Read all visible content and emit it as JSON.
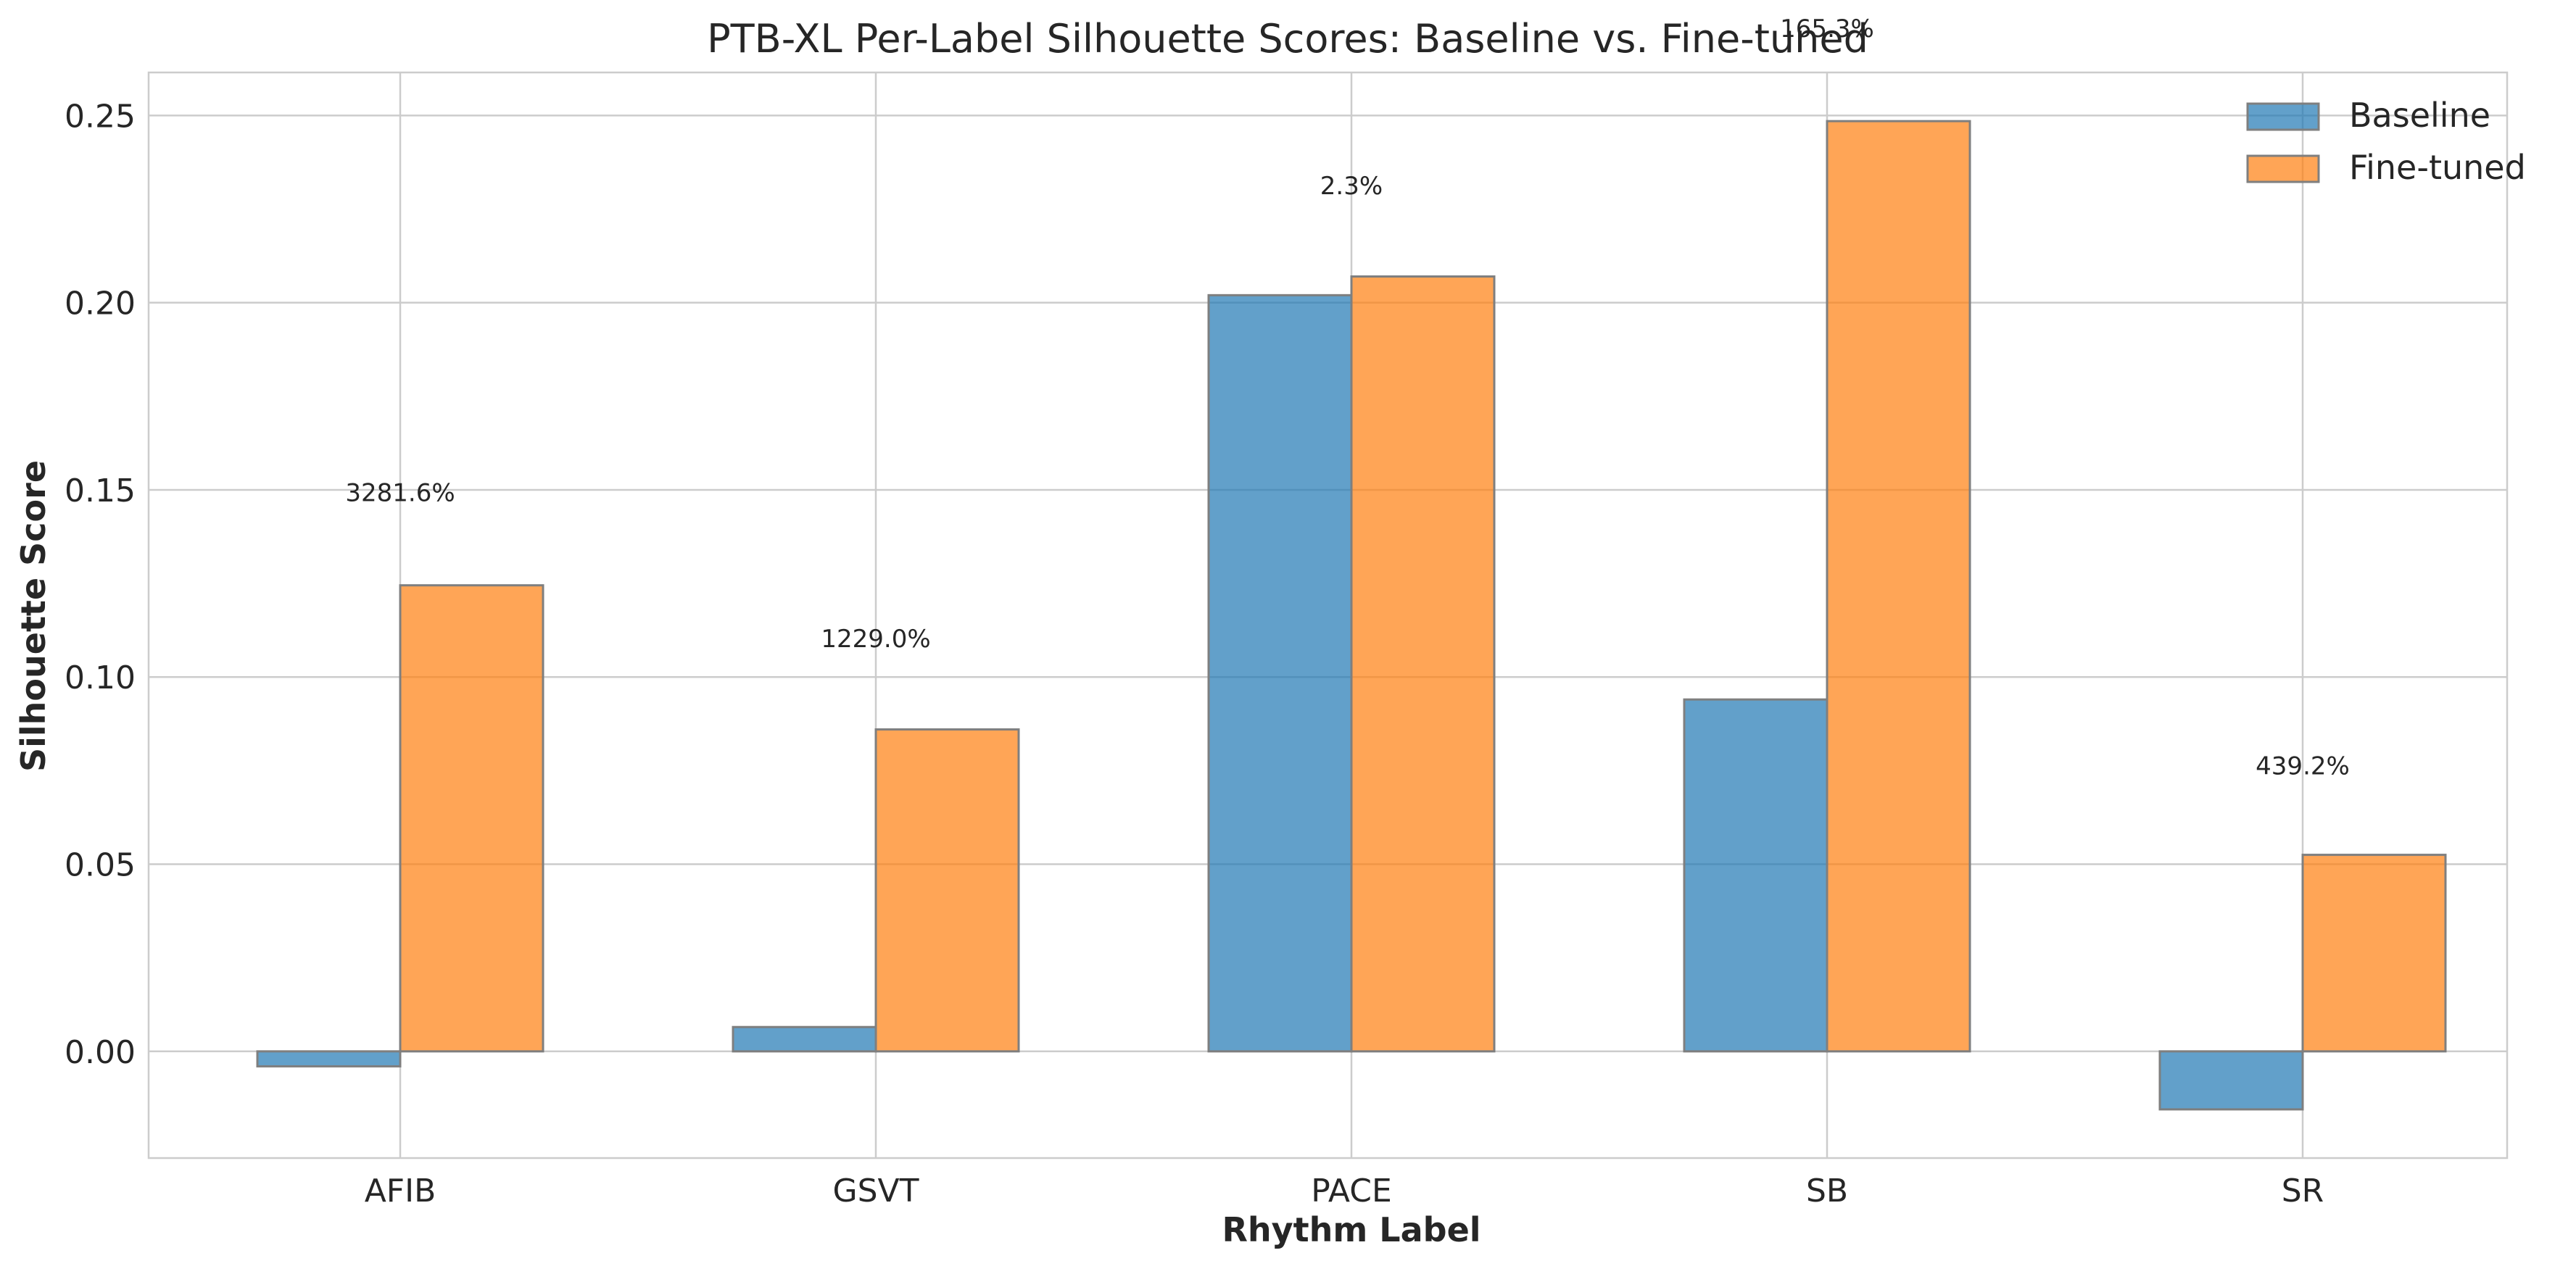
{
  "chart_data": {
    "type": "bar",
    "title": "PTB-XL Per-Label Silhouette Scores: Baseline vs. Fine-tuned",
    "xlabel": "Rhythm Label",
    "ylabel": "Silhouette Score",
    "categories": [
      "AFIB",
      "GSVT",
      "PACE",
      "SB",
      "SR"
    ],
    "series": [
      {
        "name": "Baseline",
        "values": [
          -0.004,
          0.0065,
          0.202,
          0.094,
          -0.0155
        ],
        "color": "#1f77b4"
      },
      {
        "name": "Fine-tuned",
        "values": [
          0.1245,
          0.086,
          0.207,
          0.2485,
          0.0525
        ],
        "color": "#ff7f0e"
      }
    ],
    "annotations": [
      {
        "category": "AFIB",
        "text": "3281.6%",
        "y": 0.147
      },
      {
        "category": "GSVT",
        "text": "1229.0%",
        "y": 0.108
      },
      {
        "category": "PACE",
        "text": "2.3%",
        "y": 0.229
      },
      {
        "category": "SB",
        "text": "165.3%",
        "y": 0.271
      },
      {
        "category": "SR",
        "text": "439.2%",
        "y": 0.074
      }
    ],
    "ylim": [
      -0.0285,
      0.2615
    ],
    "yticks": [
      0.0,
      0.05,
      0.1,
      0.15,
      0.2,
      0.25
    ],
    "ytick_labels": [
      "0.00",
      "0.05",
      "0.10",
      "0.15",
      "0.20",
      "0.25"
    ],
    "grid": true,
    "legend": "top-right"
  }
}
